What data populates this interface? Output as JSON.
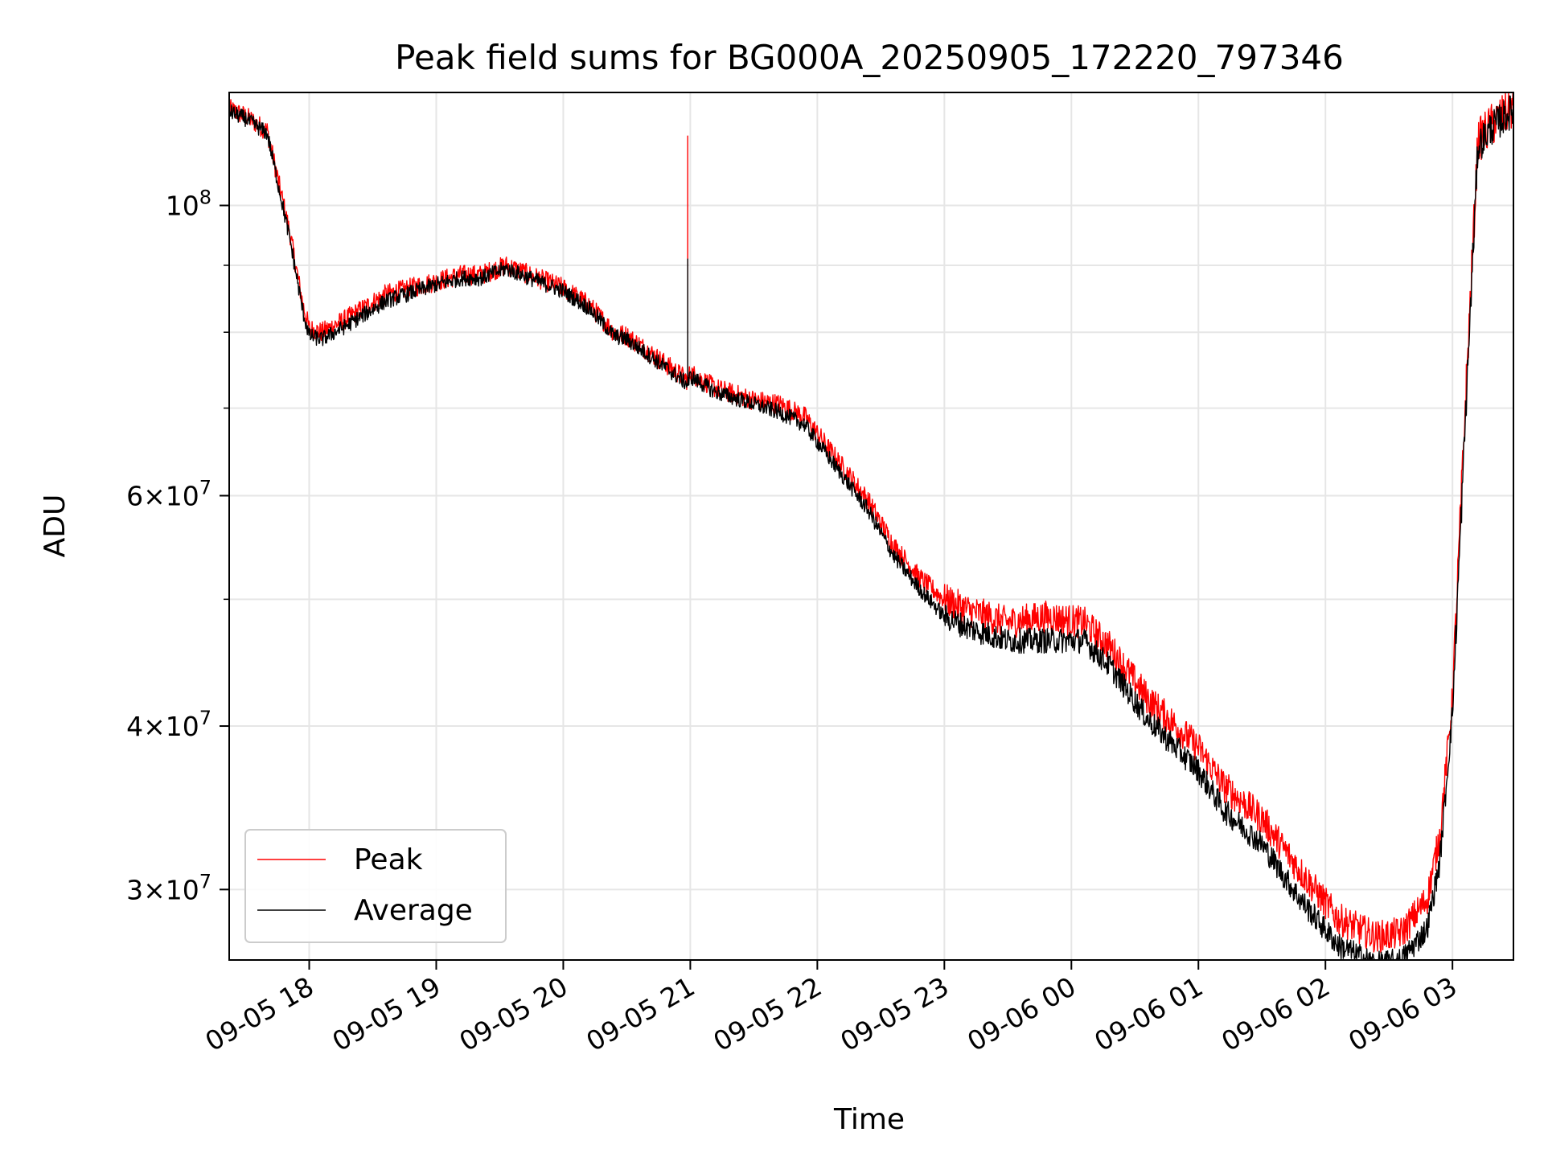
{
  "chart_data": {
    "type": "line",
    "title": "Peak field sums for BG000A_20250905_172220_797346",
    "xlabel": "Time",
    "ylabel": "ADU",
    "yscale": "log",
    "grid": true,
    "legend_position": "lower-left",
    "xlim_hours": [
      17.37,
      27.48
    ],
    "ylim": [
      26500000,
      122000000
    ],
    "x_ticks": [
      {
        "hour": 18,
        "label": "09-05 18"
      },
      {
        "hour": 19,
        "label": "09-05 19"
      },
      {
        "hour": 20,
        "label": "09-05 20"
      },
      {
        "hour": 21,
        "label": "09-05 21"
      },
      {
        "hour": 22,
        "label": "09-05 22"
      },
      {
        "hour": 23,
        "label": "09-05 23"
      },
      {
        "hour": 24,
        "label": "09-06 00"
      },
      {
        "hour": 25,
        "label": "09-06 01"
      },
      {
        "hour": 26,
        "label": "09-06 02"
      },
      {
        "hour": 27,
        "label": "09-06 03"
      }
    ],
    "y_major_ticks": [
      {
        "value": 100000000,
        "base": "10",
        "exp": "8"
      },
      {
        "value": 60000000,
        "base": "6×10",
        "exp": "7"
      },
      {
        "value": 40000000,
        "base": "4×10",
        "exp": "7"
      },
      {
        "value": 30000000,
        "base": "3×10",
        "exp": "7"
      }
    ],
    "y_minor_values": [
      90000000,
      80000000,
      70000000,
      50000000
    ],
    "series": [
      {
        "name": "Peak",
        "color": "#ff0000",
        "noise": 0.018,
        "points": [
          [
            17.37,
            118500000
          ],
          [
            17.5,
            117000000
          ],
          [
            17.67,
            114000000
          ],
          [
            17.85,
            95000000
          ],
          [
            17.95,
            84000000
          ],
          [
            18.0,
            80500000
          ],
          [
            18.1,
            80000000
          ],
          [
            18.3,
            82000000
          ],
          [
            18.6,
            85500000
          ],
          [
            19.0,
            87500000
          ],
          [
            19.2,
            88500000
          ],
          [
            19.35,
            88500000
          ],
          [
            19.55,
            90000000
          ],
          [
            19.8,
            88000000
          ],
          [
            20.0,
            86500000
          ],
          [
            20.2,
            84000000
          ],
          [
            20.4,
            80000000
          ],
          [
            20.5,
            79500000
          ],
          [
            20.7,
            77000000
          ],
          [
            20.98,
            73500000
          ],
          [
            21.0,
            74500000
          ],
          [
            21.2,
            72500000
          ],
          [
            21.5,
            71000000
          ],
          [
            21.7,
            70500000
          ],
          [
            21.9,
            69000000
          ],
          [
            22.1,
            65000000
          ],
          [
            22.4,
            59500000
          ],
          [
            22.6,
            55000000
          ],
          [
            22.8,
            52000000
          ],
          [
            23.0,
            50000000
          ],
          [
            23.2,
            49000000
          ],
          [
            23.5,
            48000000
          ],
          [
            23.8,
            48500000
          ],
          [
            24.1,
            48000000
          ],
          [
            24.3,
            46000000
          ],
          [
            24.6,
            42000000
          ],
          [
            25.0,
            38500000
          ],
          [
            25.2,
            36000000
          ],
          [
            25.5,
            34000000
          ],
          [
            25.8,
            31000000
          ],
          [
            26.1,
            28500000
          ],
          [
            26.4,
            27600000
          ],
          [
            26.6,
            27800000
          ],
          [
            26.8,
            29500000
          ],
          [
            26.9,
            33000000
          ],
          [
            27.0,
            42000000
          ],
          [
            27.1,
            70000000
          ],
          [
            27.2,
            112000000
          ],
          [
            27.3,
            115000000
          ],
          [
            27.48,
            119000000
          ]
        ],
        "spikes": [
          [
            20.98,
            113000000
          ]
        ]
      },
      {
        "name": "Average",
        "color": "#000000",
        "noise": 0.014,
        "points": [
          [
            17.37,
            118000000
          ],
          [
            17.5,
            116500000
          ],
          [
            17.67,
            113500000
          ],
          [
            17.85,
            94000000
          ],
          [
            17.95,
            83000000
          ],
          [
            18.0,
            79500000
          ],
          [
            18.1,
            79000000
          ],
          [
            18.3,
            81000000
          ],
          [
            18.6,
            84500000
          ],
          [
            19.0,
            87000000
          ],
          [
            19.2,
            88000000
          ],
          [
            19.35,
            88000000
          ],
          [
            19.55,
            89500000
          ],
          [
            19.8,
            87500000
          ],
          [
            20.0,
            86000000
          ],
          [
            20.2,
            83500000
          ],
          [
            20.4,
            79500000
          ],
          [
            20.5,
            79000000
          ],
          [
            20.7,
            76500000
          ],
          [
            20.98,
            73000000
          ],
          [
            21.0,
            74000000
          ],
          [
            21.2,
            72000000
          ],
          [
            21.5,
            70500000
          ],
          [
            21.7,
            69500000
          ],
          [
            21.9,
            68000000
          ],
          [
            22.1,
            64000000
          ],
          [
            22.4,
            58500000
          ],
          [
            22.6,
            54000000
          ],
          [
            22.8,
            51000000
          ],
          [
            23.0,
            48500000
          ],
          [
            23.2,
            47500000
          ],
          [
            23.5,
            46500000
          ],
          [
            23.8,
            46500000
          ],
          [
            24.1,
            46500000
          ],
          [
            24.3,
            44500000
          ],
          [
            24.6,
            40500000
          ],
          [
            25.0,
            37000000
          ],
          [
            25.2,
            34500000
          ],
          [
            25.5,
            32500000
          ],
          [
            25.8,
            29500000
          ],
          [
            26.1,
            27200000
          ],
          [
            26.4,
            26300000
          ],
          [
            26.6,
            26500000
          ],
          [
            26.8,
            28000000
          ],
          [
            26.9,
            31500000
          ],
          [
            27.0,
            41000000
          ],
          [
            27.1,
            68000000
          ],
          [
            27.2,
            111000000
          ],
          [
            27.3,
            114500000
          ],
          [
            27.48,
            118500000
          ]
        ],
        "spikes": [
          [
            20.98,
            91000000
          ]
        ]
      }
    ]
  }
}
